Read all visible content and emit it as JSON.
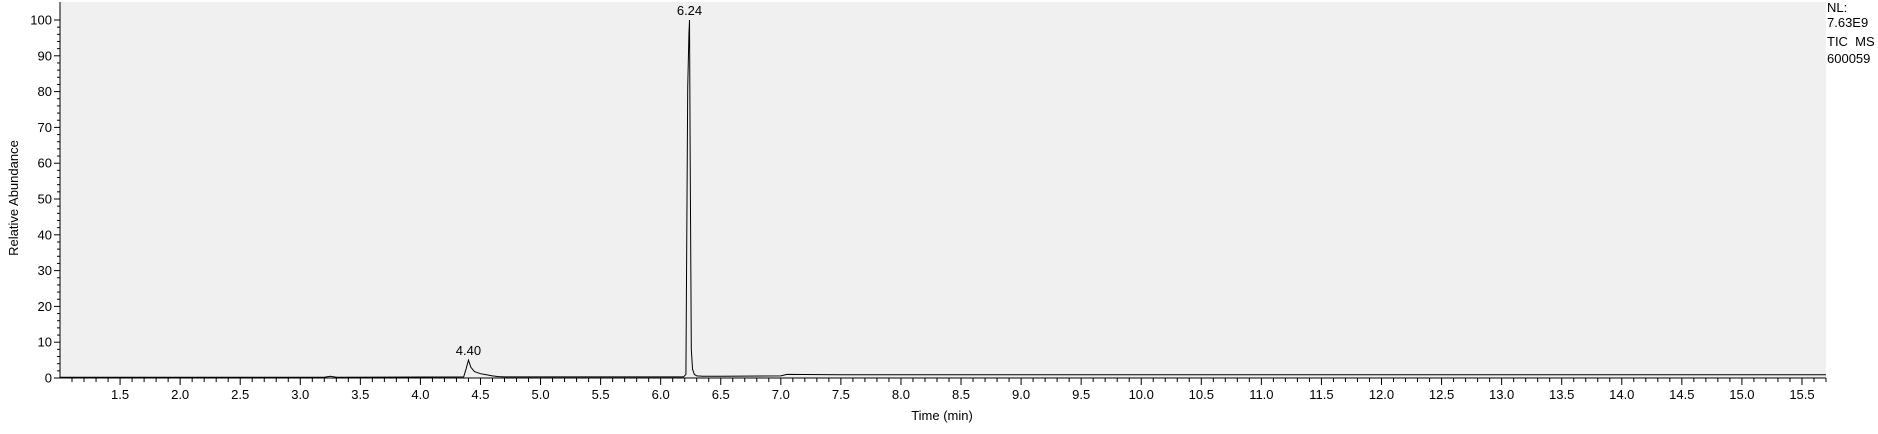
{
  "chart_data": {
    "type": "line",
    "title": "",
    "xlabel": "Time (min)",
    "ylabel": "Relative Abundance",
    "xlim": [
      1.0,
      15.7
    ],
    "ylim": [
      0,
      100
    ],
    "x_ticks": [
      "1.5",
      "2.0",
      "2.5",
      "3.0",
      "3.5",
      "4.0",
      "4.5",
      "5.0",
      "5.5",
      "6.0",
      "6.5",
      "7.0",
      "7.5",
      "8.0",
      "8.5",
      "9.0",
      "9.5",
      "10.0",
      "10.5",
      "11.0",
      "11.5",
      "12.0",
      "12.5",
      "13.0",
      "13.5",
      "14.0",
      "14.5",
      "15.0",
      "15.5"
    ],
    "y_ticks": [
      "0",
      "10",
      "20",
      "30",
      "40",
      "50",
      "60",
      "70",
      "80",
      "90",
      "100"
    ],
    "grid": false,
    "info": {
      "nl_label": "NL:",
      "nl_value": "7.63E9",
      "trace_label": "TIC  MS",
      "file_id": "600059"
    },
    "peak_labels": [
      {
        "x": 4.4,
        "y": 5,
        "label": "4.40"
      },
      {
        "x": 6.24,
        "y": 100,
        "label": "6.24"
      }
    ],
    "series": [
      {
        "x": [
          1.0,
          3.2,
          3.25,
          3.3,
          4.36,
          4.38,
          4.4,
          4.42,
          4.45,
          4.5,
          4.55,
          4.6,
          4.65,
          4.7,
          6.19,
          6.21,
          6.225,
          6.235,
          6.24,
          6.245,
          6.255,
          6.265,
          6.28,
          6.3,
          6.35,
          6.5,
          7.0,
          7.05,
          7.5,
          15.7
        ],
        "y": [
          0.2,
          0.2,
          0.5,
          0.2,
          0.3,
          2.5,
          5.0,
          3.0,
          1.8,
          1.2,
          0.9,
          0.6,
          0.4,
          0.3,
          0.3,
          1.0,
          81,
          96,
          100,
          65,
          8,
          2.5,
          1.0,
          0.6,
          0.5,
          0.5,
          0.6,
          1.0,
          0.9,
          0.9
        ]
      }
    ]
  }
}
